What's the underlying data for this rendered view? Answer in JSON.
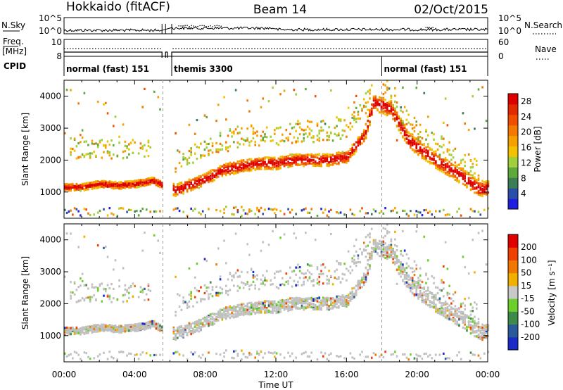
{
  "header": {
    "site": "Hokkaido (fitACF)",
    "beam": "Beam 14",
    "date": "02/Oct/2015"
  },
  "side_labels": {
    "nsky": "N.Sky",
    "nsearch": "N.Search",
    "freq_line1": "Freq.",
    "freq_line2": "[MHz]",
    "nave": "Nave",
    "cpid": "CPID"
  },
  "colors": {
    "power_scale": [
      "#1f1fdf",
      "#2a4fa8",
      "#3b7d55",
      "#5fa83c",
      "#9fcf3a",
      "#f2c200",
      "#f5a000",
      "#f27a00",
      "#ee5000",
      "#e42a00",
      "#de0000"
    ],
    "velocity_scale": [
      "#1a2bc8",
      "#2b5a9a",
      "#3f8a4a",
      "#6ccf2c",
      "#c8c8c8",
      "#c8c8c8",
      "#f0b000",
      "#f07800",
      "#ee4000",
      "#e00000"
    ],
    "ground_scatter": "#c0c0c0",
    "axis": "#000000"
  },
  "chart_data": [
    {
      "type": "line",
      "title": "N.Sky / N.Search",
      "y_ticks_left": [
        "10^5",
        "10^0"
      ],
      "y_ticks_right": [
        "10^5",
        "10^0"
      ],
      "series": [
        {
          "name": "N.Sky",
          "style": "solid"
        },
        {
          "name": "N.Search",
          "style": "dotted"
        }
      ],
      "gap_hours": [
        5.5,
        6.1
      ]
    },
    {
      "type": "line",
      "title": "Freq. [MHz] / Nave",
      "y_ticks_left": [
        "10",
        "8"
      ],
      "y_ticks_right": [
        "60",
        "0"
      ],
      "series": [
        {
          "name": "Freq.",
          "style": "solid",
          "approx_value": 10
        },
        {
          "name": "Nave",
          "style": "dotted",
          "approx_value": 30
        }
      ]
    },
    {
      "type": "table",
      "title": "CPID",
      "segments": [
        {
          "label": "normal (fast) 151",
          "start_hour": 0,
          "end_hour": 6.1
        },
        {
          "label": "themis 3300",
          "start_hour": 6.1,
          "end_hour": 18.0
        },
        {
          "label": "normal (fast) 151",
          "start_hour": 18.0,
          "end_hour": 24
        }
      ]
    },
    {
      "type": "heatmap",
      "ylabel": "Slant Range [km]",
      "xlabel": "Time UT",
      "x_range_hours": [
        0,
        24
      ],
      "y_range_km": [
        180,
        4500
      ],
      "y_ticks": [
        "1000",
        "2000",
        "3000",
        "4000"
      ],
      "x_ticks": [
        "00:00",
        "04:00",
        "08:00",
        "12:00",
        "16:00",
        "20:00",
        "00:00"
      ],
      "colorbar": {
        "label": "Power [dB]",
        "ticks": [
          "4",
          "8",
          "12",
          "16",
          "20",
          "24",
          "28"
        ],
        "range": [
          0,
          30
        ]
      },
      "main_echo_band_km": [
        [
          0,
          1150
        ],
        [
          1,
          1150
        ],
        [
          2,
          1250
        ],
        [
          3,
          1200
        ],
        [
          4,
          1250
        ],
        [
          5,
          1350
        ],
        [
          6.3,
          1050
        ],
        [
          7,
          1200
        ],
        [
          8,
          1400
        ],
        [
          9,
          1700
        ],
        [
          10,
          1800
        ],
        [
          11,
          1900
        ],
        [
          12,
          1900
        ],
        [
          13,
          2000
        ],
        [
          14,
          2000
        ],
        [
          15,
          2000
        ],
        [
          16,
          2100
        ],
        [
          17,
          2800
        ],
        [
          17.5,
          3800
        ],
        [
          18.5,
          3600
        ],
        [
          19.5,
          2600
        ],
        [
          21,
          2000
        ],
        [
          22.5,
          1500
        ],
        [
          23.5,
          1100
        ]
      ]
    },
    {
      "type": "heatmap",
      "ylabel": "Slant Range [km]",
      "xlabel": "Time UT",
      "x_range_hours": [
        0,
        24
      ],
      "y_range_km": [
        180,
        4500
      ],
      "y_ticks": [
        "1000",
        "2000",
        "3000",
        "4000"
      ],
      "x_ticks": [
        "00:00",
        "04:00",
        "08:00",
        "12:00",
        "16:00",
        "20:00",
        "00:00"
      ],
      "colorbar": {
        "label": "Velocity [m s⁻¹]",
        "ticks": [
          "200",
          "100",
          "50",
          "15",
          "-15",
          "-50",
          "-100",
          "-200"
        ],
        "range": [
          -250,
          250
        ]
      }
    }
  ]
}
